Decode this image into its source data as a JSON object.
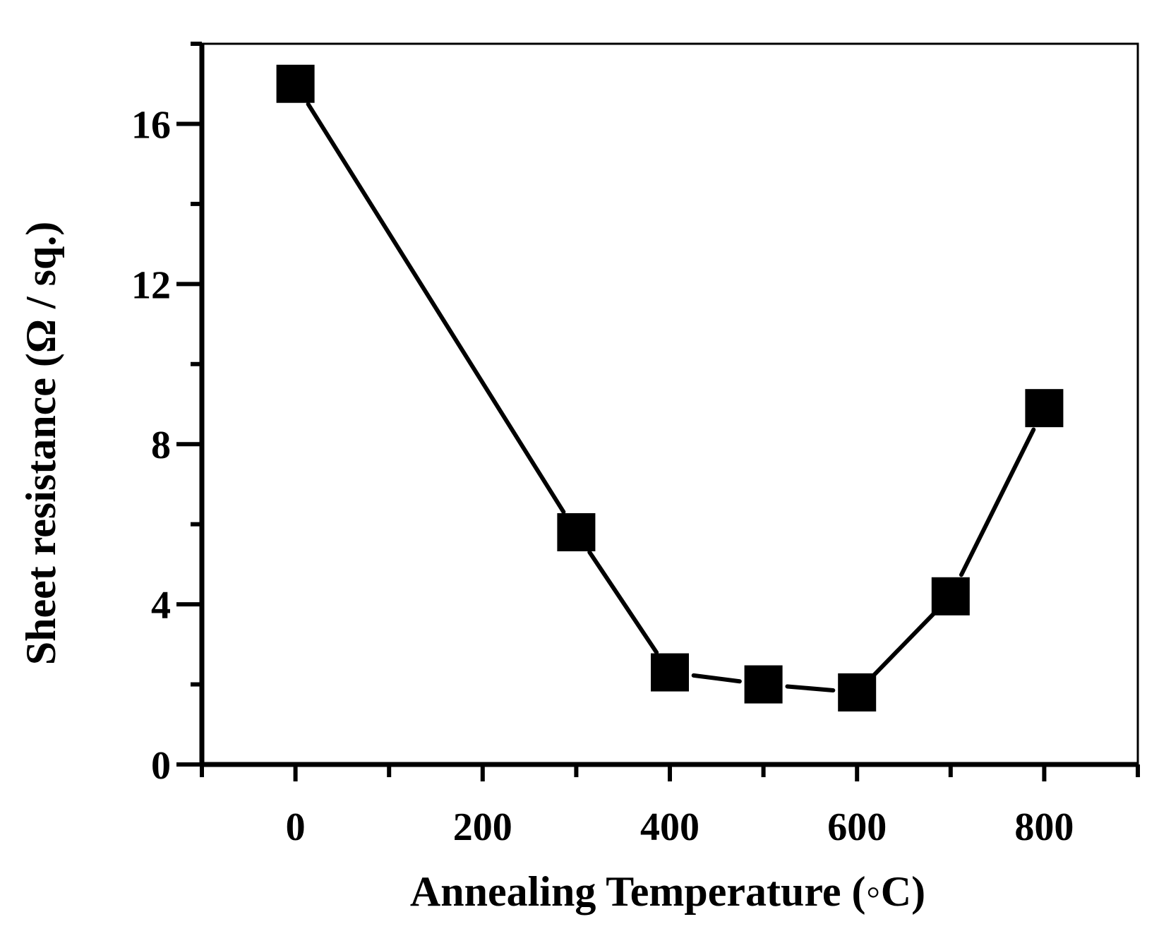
{
  "chart_data": {
    "type": "line",
    "title": "",
    "xlabel": "Annealing Temperature  (◦C)",
    "ylabel": "Sheet resistance  (Ω / sq.)",
    "xlim": [
      -100,
      900
    ],
    "ylim": [
      0,
      18
    ],
    "x_major_ticks": [
      0,
      200,
      400,
      600,
      800
    ],
    "x_minor_ticks": [
      -100,
      100,
      300,
      500,
      700,
      900
    ],
    "y_major_ticks": [
      0,
      4,
      8,
      12,
      16
    ],
    "y_minor_ticks": [
      2,
      6,
      10,
      14,
      18
    ],
    "x_tick_labels": [
      "0",
      "200",
      "400",
      "600",
      "800"
    ],
    "y_tick_labels": [
      "0",
      "4",
      "8",
      "12",
      "16"
    ],
    "grid": false,
    "marker": "filled-square",
    "line_color": "#000000",
    "series": [
      {
        "x": [
          0,
          300,
          400,
          500,
          600,
          700,
          800
        ],
        "y": [
          17.0,
          5.8,
          2.3,
          2.0,
          1.8,
          4.2,
          8.9
        ]
      }
    ]
  }
}
